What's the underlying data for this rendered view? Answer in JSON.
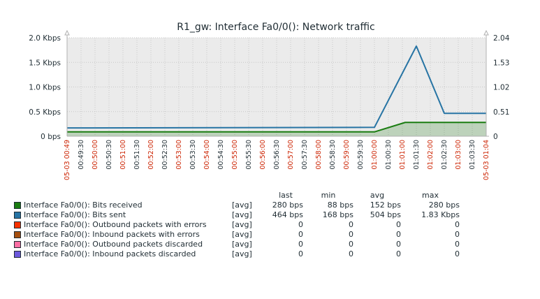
{
  "chart_data": {
    "type": "line",
    "title": "R1_gw: Interface Fa0/0(): Network traffic",
    "left_axis": {
      "ticks": [
        {
          "value": 0,
          "label": "0 bps"
        },
        {
          "value": 0.5,
          "label": "0.5 Kbps"
        },
        {
          "value": 1.0,
          "label": "1.0 Kbps"
        },
        {
          "value": 1.5,
          "label": "1.5 Kbps"
        },
        {
          "value": 2.0,
          "label": "2.0 Kbps"
        }
      ],
      "range": [
        0,
        2.0
      ]
    },
    "right_axis": {
      "ticks": [
        {
          "value": 0,
          "label": "0"
        },
        {
          "value": 0.51,
          "label": "0.51"
        },
        {
          "value": 1.02,
          "label": "1.02"
        },
        {
          "value": 1.53,
          "label": "1.53"
        },
        {
          "value": 2.04,
          "label": "2.04"
        }
      ],
      "range": [
        0,
        2.04
      ]
    },
    "x_range": [
      0,
      15
    ],
    "x_ticks": [
      {
        "value": 0,
        "label": "05-03 00:49",
        "color": "#cc2200"
      },
      {
        "value": 0.5,
        "label": "00:49:30",
        "color": "#1f2c33"
      },
      {
        "value": 1,
        "label": "00:50:00",
        "color": "#cc2200"
      },
      {
        "value": 1.5,
        "label": "00:50:30",
        "color": "#1f2c33"
      },
      {
        "value": 2,
        "label": "00:51:00",
        "color": "#cc2200"
      },
      {
        "value": 2.5,
        "label": "00:51:30",
        "color": "#1f2c33"
      },
      {
        "value": 3,
        "label": "00:52:00",
        "color": "#cc2200"
      },
      {
        "value": 3.5,
        "label": "00:52:30",
        "color": "#1f2c33"
      },
      {
        "value": 4,
        "label": "00:53:00",
        "color": "#cc2200"
      },
      {
        "value": 4.5,
        "label": "00:53:30",
        "color": "#1f2c33"
      },
      {
        "value": 5,
        "label": "00:54:00",
        "color": "#cc2200"
      },
      {
        "value": 5.5,
        "label": "00:54:30",
        "color": "#1f2c33"
      },
      {
        "value": 6,
        "label": "00:55:00",
        "color": "#cc2200"
      },
      {
        "value": 6.5,
        "label": "00:55:30",
        "color": "#1f2c33"
      },
      {
        "value": 7,
        "label": "00:56:00",
        "color": "#cc2200"
      },
      {
        "value": 7.5,
        "label": "00:56:30",
        "color": "#1f2c33"
      },
      {
        "value": 8,
        "label": "00:57:00",
        "color": "#cc2200"
      },
      {
        "value": 8.5,
        "label": "00:57:30",
        "color": "#1f2c33"
      },
      {
        "value": 9,
        "label": "00:58:00",
        "color": "#cc2200"
      },
      {
        "value": 9.5,
        "label": "00:58:30",
        "color": "#1f2c33"
      },
      {
        "value": 10,
        "label": "00:59:00",
        "color": "#cc2200"
      },
      {
        "value": 10.5,
        "label": "00:59:30",
        "color": "#1f2c33"
      },
      {
        "value": 11,
        "label": "01:00:00",
        "color": "#cc2200"
      },
      {
        "value": 11.5,
        "label": "01:00:30",
        "color": "#1f2c33"
      },
      {
        "value": 12,
        "label": "01:01:00",
        "color": "#cc2200"
      },
      {
        "value": 12.5,
        "label": "01:01:30",
        "color": "#1f2c33"
      },
      {
        "value": 13,
        "label": "01:02:00",
        "color": "#cc2200"
      },
      {
        "value": 13.5,
        "label": "01:02:30",
        "color": "#1f2c33"
      },
      {
        "value": 14,
        "label": "01:03:00",
        "color": "#cc2200"
      },
      {
        "value": 14.5,
        "label": "01:03:30",
        "color": "#1f2c33"
      },
      {
        "value": 15,
        "label": "05-03 01:04",
        "color": "#cc2200"
      }
    ],
    "series": [
      {
        "name": "Interface Fa0/0(): Bits received",
        "color": "#1a7c11",
        "fill": "area",
        "axis": "left",
        "x": [
          0,
          11,
          12.1,
          15
        ],
        "y": [
          0.088,
          0.088,
          0.28,
          0.28
        ]
      },
      {
        "name": "Interface Fa0/0(): Bits sent",
        "color": "#2774a4",
        "fill": "line",
        "axis": "left",
        "x": [
          0,
          11,
          12.5,
          13.5,
          15
        ],
        "y": [
          0.168,
          0.18,
          1.83,
          0.464,
          0.464
        ]
      }
    ],
    "grid": true
  },
  "legend": {
    "headers": {
      "last": "last",
      "min": "min",
      "avg": "avg",
      "max": "max"
    },
    "rows": [
      {
        "name": "Interface Fa0/0(): Bits received",
        "color": "#1a7c11",
        "fn": "[avg]",
        "last": "280 bps",
        "min": "88 bps",
        "avg": "152 bps",
        "max": "280 bps"
      },
      {
        "name": "Interface Fa0/0(): Bits sent",
        "color": "#2774a4",
        "fn": "[avg]",
        "last": "464 bps",
        "min": "168 bps",
        "avg": "504 bps",
        "max": "1.83 Kbps"
      },
      {
        "name": "Interface Fa0/0(): Outbound packets with errors",
        "color": "#f63100",
        "fn": "[avg]",
        "last": "0",
        "min": "0",
        "avg": "0",
        "max": "0"
      },
      {
        "name": "Interface Fa0/0(): Inbound packets with errors",
        "color": "#a54f10",
        "fn": "[avg]",
        "last": "0",
        "min": "0",
        "avg": "0",
        "max": "0"
      },
      {
        "name": "Interface Fa0/0(): Outbound packets discarded",
        "color": "#fc6ea3",
        "fn": "[avg]",
        "last": "0",
        "min": "0",
        "avg": "0",
        "max": "0"
      },
      {
        "name": "Interface Fa0/0(): Inbound packets discarded",
        "color": "#6c59dc",
        "fn": "[avg]",
        "last": "0",
        "min": "0",
        "avg": "0",
        "max": "0"
      }
    ]
  }
}
